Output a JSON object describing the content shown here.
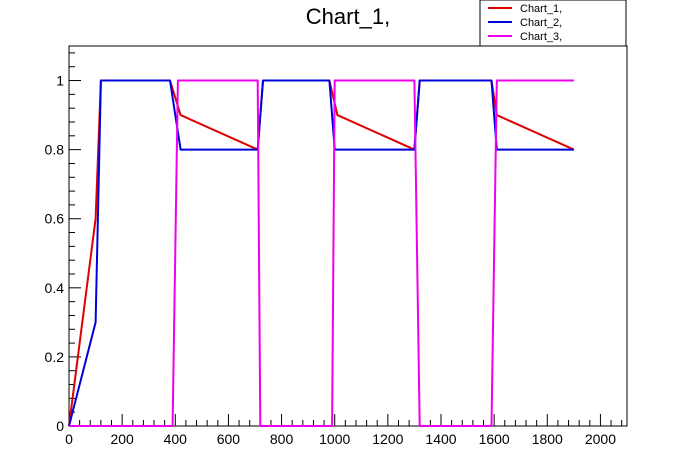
{
  "chart_data": {
    "type": "line",
    "title": "Chart_1,",
    "xlabel": "",
    "ylabel": "",
    "xlim": [
      0,
      2100
    ],
    "ylim": [
      0,
      1.1
    ],
    "x_ticks": [
      0,
      200,
      400,
      600,
      800,
      1000,
      1200,
      1400,
      1600,
      1800,
      2000
    ],
    "x_tick_labels": [
      "0",
      "200",
      "400",
      "600",
      "800",
      "1000",
      "1200",
      "1400",
      "1600",
      "1800",
      "2000"
    ],
    "y_ticks": [
      0,
      0.2,
      0.4,
      0.6,
      0.8,
      1
    ],
    "y_tick_labels": [
      "0",
      "0.2",
      "0.4",
      "0.6",
      "0.8",
      "1"
    ],
    "grid": false,
    "legend_position": "top-right",
    "series": [
      {
        "name": "Chart_1,",
        "color": "#e00000",
        "points": [
          [
            0,
            0
          ],
          [
            100,
            0.6
          ],
          [
            120,
            1
          ],
          [
            380,
            1
          ],
          [
            420,
            0.9
          ],
          [
            710,
            0.8
          ],
          [
            730,
            1
          ],
          [
            980,
            1
          ],
          [
            1010,
            0.9
          ],
          [
            1300,
            0.8
          ],
          [
            1320,
            1
          ],
          [
            1590,
            1
          ],
          [
            1610,
            0.9
          ],
          [
            1900,
            0.8
          ]
        ]
      },
      {
        "name": "Chart_2,",
        "color": "#0000dd",
        "points": [
          [
            0,
            0
          ],
          [
            100,
            0.3
          ],
          [
            120,
            1
          ],
          [
            380,
            1
          ],
          [
            400,
            0.9
          ],
          [
            420,
            0.8
          ],
          [
            710,
            0.8
          ],
          [
            730,
            1
          ],
          [
            980,
            1
          ],
          [
            1000,
            0.8
          ],
          [
            1300,
            0.8
          ],
          [
            1320,
            1
          ],
          [
            1590,
            1
          ],
          [
            1600,
            0.9
          ],
          [
            1610,
            0.8
          ],
          [
            1900,
            0.8
          ]
        ]
      },
      {
        "name": "Chart_3,",
        "color": "#ee00ee",
        "points": [
          [
            0,
            0
          ],
          [
            390,
            0
          ],
          [
            410,
            1
          ],
          [
            710,
            1
          ],
          [
            720,
            0
          ],
          [
            990,
            0
          ],
          [
            1000,
            1
          ],
          [
            1300,
            1
          ],
          [
            1320,
            0
          ],
          [
            1590,
            0
          ],
          [
            1610,
            1
          ],
          [
            1900,
            1
          ]
        ]
      }
    ]
  }
}
